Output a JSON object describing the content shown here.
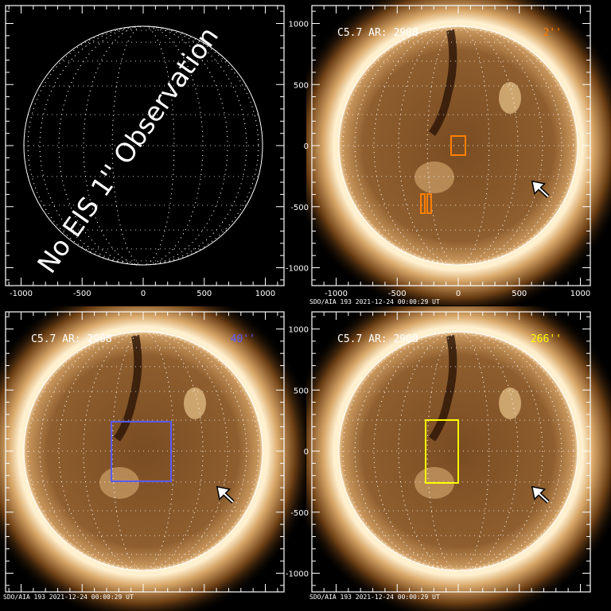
{
  "figure": {
    "panels": [
      {
        "id": "top-left",
        "has_image": false,
        "overlay_text": "No EIS 1'' Observation",
        "x_ticks": [
          "-1000",
          "-500",
          "0",
          "500",
          "1000"
        ],
        "y_ticks": [],
        "footer": ""
      },
      {
        "id": "top-right",
        "has_image": true,
        "label": "C5.7 AR: 2908",
        "fov_label": "2''",
        "fov_color": "#ff7f00",
        "x_ticks": [
          "-1000",
          "-500",
          "0",
          "500",
          "1000"
        ],
        "y_ticks": [
          "1000",
          "500",
          "0",
          "-500",
          "-1000"
        ],
        "footer": "SDO/AIA 193   2021-12-24 00:00:29 UT",
        "arrow": true
      },
      {
        "id": "bottom-left",
        "has_image": true,
        "label": "C5.7 AR: 2908",
        "fov_label": "40''",
        "fov_color": "#5a5aff",
        "x_ticks": [],
        "y_ticks": [],
        "footer": "SDO/AIA 193   2021-12-24 00:00:29 UT",
        "arrow": true
      },
      {
        "id": "bottom-right",
        "has_image": true,
        "label": "C5.7 AR: 2908",
        "fov_label": "266''",
        "fov_color": "#ffff00",
        "x_ticks": [],
        "y_ticks": [
          "1000",
          "500",
          "0",
          "-500",
          "-1000"
        ],
        "footer": "SDO/AIA 193   2021-12-24 00:00:29 UT",
        "arrow": true
      }
    ],
    "colors": {
      "sun_core": "#8a5a2a",
      "sun_limb": "#fff2d8",
      "background": "#000000"
    }
  }
}
